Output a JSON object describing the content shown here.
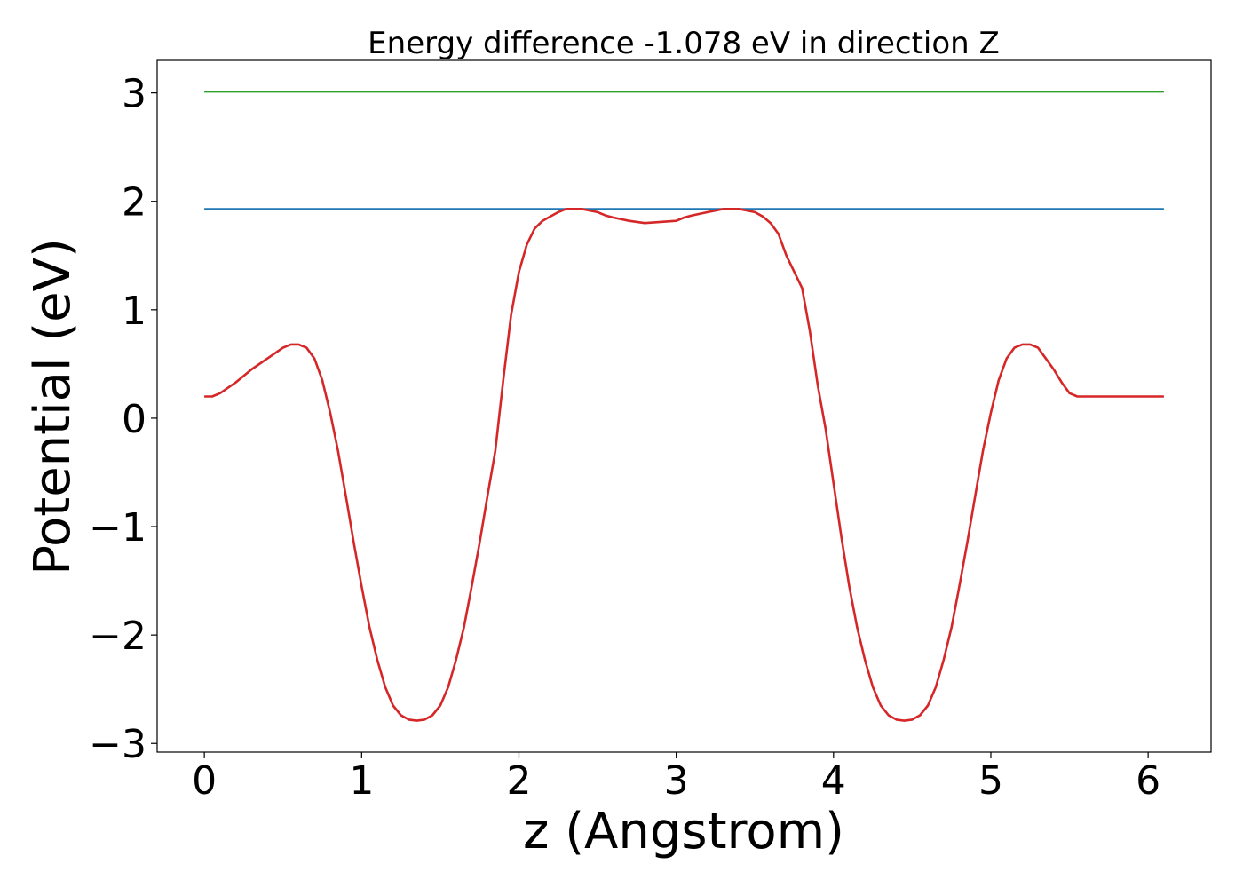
{
  "chart_data": {
    "type": "line",
    "title": "Energy difference -1.078 eV in direction Z",
    "xlabel": "z (Angstrom)",
    "ylabel": "Potential (eV)",
    "xlim": [
      -0.3,
      6.4
    ],
    "ylim": [
      -3.08,
      3.3
    ],
    "grid": false,
    "legend": "none",
    "xticks": [
      {
        "value": 0,
        "label": "0"
      },
      {
        "value": 1,
        "label": "1"
      },
      {
        "value": 2,
        "label": "2"
      },
      {
        "value": 3,
        "label": "3"
      },
      {
        "value": 4,
        "label": "4"
      },
      {
        "value": 5,
        "label": "5"
      },
      {
        "value": 6,
        "label": "6"
      }
    ],
    "yticks": [
      {
        "value": -3,
        "label": "−3"
      },
      {
        "value": -2,
        "label": "−2"
      },
      {
        "value": -1,
        "label": "−1"
      },
      {
        "value": 0,
        "label": "0"
      },
      {
        "value": 1,
        "label": "1"
      },
      {
        "value": 2,
        "label": "2"
      },
      {
        "value": 3,
        "label": "3"
      }
    ],
    "series": [
      {
        "color": "#2ca02c",
        "x": [
          0,
          6.1
        ],
        "y": [
          3.01,
          3.01
        ]
      },
      {
        "color": "#1f77b4",
        "x": [
          0,
          6.1
        ],
        "y": [
          1.93,
          1.93
        ]
      },
      {
        "color": "#d62728",
        "x": [
          0,
          0.05,
          0.1,
          0.2,
          0.3,
          0.4,
          0.5,
          0.55,
          0.6,
          0.65,
          0.7,
          0.75,
          0.8,
          0.85,
          0.9,
          0.95,
          1.0,
          1.05,
          1.1,
          1.15,
          1.2,
          1.25,
          1.3,
          1.35,
          1.4,
          1.45,
          1.5,
          1.55,
          1.6,
          1.65,
          1.7,
          1.75,
          1.8,
          1.85,
          1.9,
          1.95,
          2.0,
          2.05,
          2.1,
          2.15,
          2.2,
          2.25,
          2.3,
          2.4,
          2.5,
          2.55,
          2.6,
          2.7,
          2.8,
          2.9,
          3.0,
          3.05,
          3.1,
          3.2,
          3.3,
          3.4,
          3.5,
          3.55,
          3.6,
          3.65,
          3.7,
          3.8,
          3.85,
          3.9,
          3.95,
          4.0,
          4.05,
          4.1,
          4.15,
          4.2,
          4.25,
          4.3,
          4.35,
          4.4,
          4.45,
          4.5,
          4.55,
          4.6,
          4.65,
          4.7,
          4.75,
          4.8,
          4.85,
          4.9,
          4.95,
          5.0,
          5.05,
          5.1,
          5.15,
          5.2,
          5.25,
          5.3,
          5.35,
          5.4,
          5.45,
          5.5,
          5.55,
          5.6,
          5.7,
          5.8,
          5.9,
          6.0,
          6.05,
          6.1
        ],
        "y": [
          0.2,
          0.2,
          0.23,
          0.33,
          0.45,
          0.55,
          0.65,
          0.68,
          0.68,
          0.65,
          0.55,
          0.35,
          0.05,
          -0.3,
          -0.72,
          -1.15,
          -1.55,
          -1.93,
          -2.23,
          -2.48,
          -2.65,
          -2.74,
          -2.78,
          -2.79,
          -2.78,
          -2.74,
          -2.65,
          -2.48,
          -2.23,
          -1.93,
          -1.55,
          -1.15,
          -0.72,
          -0.3,
          0.35,
          0.95,
          1.35,
          1.6,
          1.75,
          1.82,
          1.86,
          1.9,
          1.93,
          1.93,
          1.9,
          1.87,
          1.85,
          1.82,
          1.8,
          1.81,
          1.82,
          1.85,
          1.87,
          1.9,
          1.93,
          1.93,
          1.9,
          1.86,
          1.8,
          1.7,
          1.5,
          1.2,
          0.8,
          0.3,
          -0.1,
          -0.6,
          -1.1,
          -1.55,
          -1.93,
          -2.23,
          -2.48,
          -2.65,
          -2.74,
          -2.78,
          -2.79,
          -2.78,
          -2.74,
          -2.65,
          -2.48,
          -2.23,
          -1.93,
          -1.55,
          -1.15,
          -0.72,
          -0.3,
          0.05,
          0.35,
          0.55,
          0.65,
          0.68,
          0.68,
          0.65,
          0.55,
          0.45,
          0.33,
          0.23,
          0.2,
          0.2,
          0.2,
          0.2,
          0.2,
          0.2,
          0.2,
          0.2
        ]
      }
    ]
  }
}
